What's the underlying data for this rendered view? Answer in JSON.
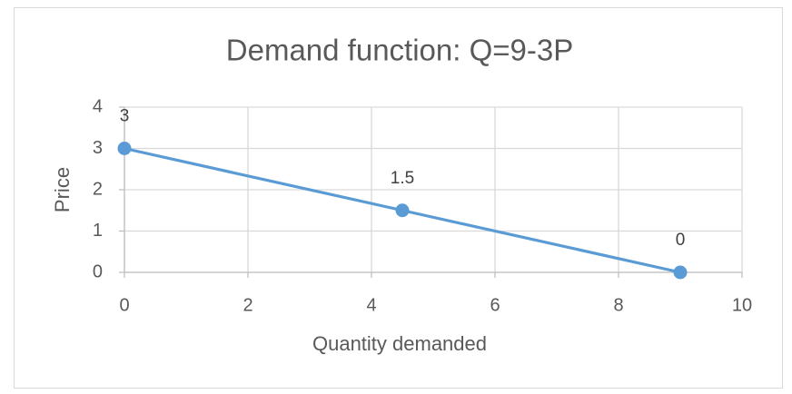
{
  "chart_data": {
    "type": "line",
    "title": "Demand function: Q=9-3P",
    "x_label": "Quantity demanded",
    "y_label": "Price",
    "x": [
      0,
      4.5,
      9
    ],
    "values": [
      3,
      1.5,
      0
    ],
    "color": "#5b9bd5",
    "markers": true,
    "data_labels": true,
    "xlim": [
      0,
      10
    ],
    "xticks": [
      0,
      2,
      4,
      6,
      8,
      10
    ],
    "ylim": [
      0,
      4
    ],
    "yticks": [
      0,
      1,
      2,
      3,
      4
    ],
    "grid": true
  }
}
